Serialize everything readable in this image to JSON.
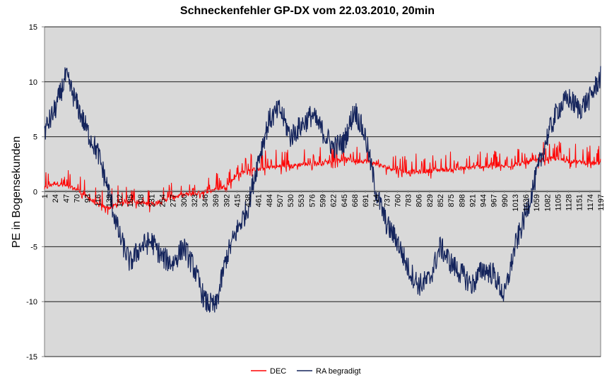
{
  "chart_data": {
    "type": "line",
    "title": "Schneckenfehler  GP-DX vom 22.03.2010, 20min",
    "xlabel": "",
    "ylabel": "PE in Bogensekunden",
    "ylim": [
      -15,
      15
    ],
    "y_ticks": [
      15,
      10,
      5,
      0,
      -5,
      -10,
      -15
    ],
    "x_range": [
      1,
      1197
    ],
    "x_tick_labels": [
      "1",
      "24",
      "47",
      "70",
      "93",
      "116",
      "139",
      "162",
      "185",
      "208",
      "231",
      "254",
      "277",
      "300",
      "323",
      "346",
      "369",
      "392",
      "415",
      "438",
      "461",
      "484",
      "507",
      "530",
      "553",
      "576",
      "599",
      "622",
      "645",
      "668",
      "691",
      "714",
      "737",
      "760",
      "783",
      "806",
      "829",
      "852",
      "875",
      "898",
      "921",
      "944",
      "967",
      "990",
      "1013",
      "1036",
      "1059",
      "1082",
      "1105",
      "1128",
      "1151",
      "1174",
      "1197"
    ],
    "grid": "horizontal",
    "legend_position": "bottom",
    "series": [
      {
        "name": "DEC",
        "color": "#ff0000",
        "x": [
          1,
          24,
          47,
          70,
          93,
          116,
          139,
          162,
          185,
          208,
          231,
          254,
          277,
          300,
          323,
          346,
          369,
          392,
          415,
          438,
          461,
          484,
          507,
          530,
          553,
          576,
          599,
          622,
          645,
          668,
          691,
          714,
          737,
          760,
          783,
          806,
          829,
          852,
          875,
          898,
          921,
          944,
          967,
          990,
          1013,
          1036,
          1059,
          1082,
          1105,
          1128,
          1151,
          1174,
          1197
        ],
        "y": [
          0.3,
          0.8,
          0.5,
          0.2,
          -0.5,
          -1.2,
          -1.5,
          -1.0,
          -0.8,
          -1.0,
          -1.2,
          -0.8,
          -0.5,
          -0.3,
          -0.2,
          0.0,
          0.2,
          0.5,
          1.5,
          2.0,
          2.0,
          2.2,
          2.3,
          2.3,
          2.5,
          2.5,
          2.6,
          2.8,
          3.0,
          2.8,
          2.8,
          2.5,
          2.2,
          2.0,
          1.8,
          1.8,
          1.9,
          2.0,
          2.0,
          2.1,
          2.2,
          2.3,
          2.3,
          2.3,
          2.5,
          2.6,
          2.8,
          3.0,
          3.0,
          2.8,
          2.7,
          2.6,
          2.5
        ],
        "noise": 1.5
      },
      {
        "name": "RA begradigt",
        "color": "#14245c",
        "x": [
          1,
          24,
          47,
          70,
          93,
          116,
          139,
          162,
          185,
          208,
          231,
          254,
          277,
          300,
          323,
          346,
          369,
          392,
          415,
          438,
          461,
          484,
          507,
          530,
          553,
          576,
          599,
          622,
          645,
          668,
          691,
          714,
          737,
          760,
          783,
          806,
          829,
          852,
          875,
          898,
          921,
          944,
          967,
          990,
          1013,
          1036,
          1059,
          1082,
          1105,
          1128,
          1151,
          1174,
          1197
        ],
        "y": [
          5.5,
          7.5,
          10.5,
          8.0,
          5.5,
          3.5,
          0.0,
          -4.0,
          -6.5,
          -5.0,
          -4.5,
          -6.0,
          -6.5,
          -5.0,
          -7.0,
          -10.0,
          -10.5,
          -6.0,
          -3.5,
          -1.5,
          3.0,
          6.5,
          7.5,
          5.0,
          6.0,
          7.0,
          5.5,
          4.0,
          4.5,
          7.5,
          5.0,
          0.0,
          -3.0,
          -4.5,
          -7.0,
          -8.5,
          -8.0,
          -5.0,
          -6.5,
          -7.5,
          -8.5,
          -7.0,
          -7.5,
          -9.5,
          -5.0,
          -2.0,
          1.5,
          5.0,
          7.5,
          8.5,
          7.5,
          8.5,
          10.5
        ],
        "noise": 1.8
      }
    ]
  }
}
